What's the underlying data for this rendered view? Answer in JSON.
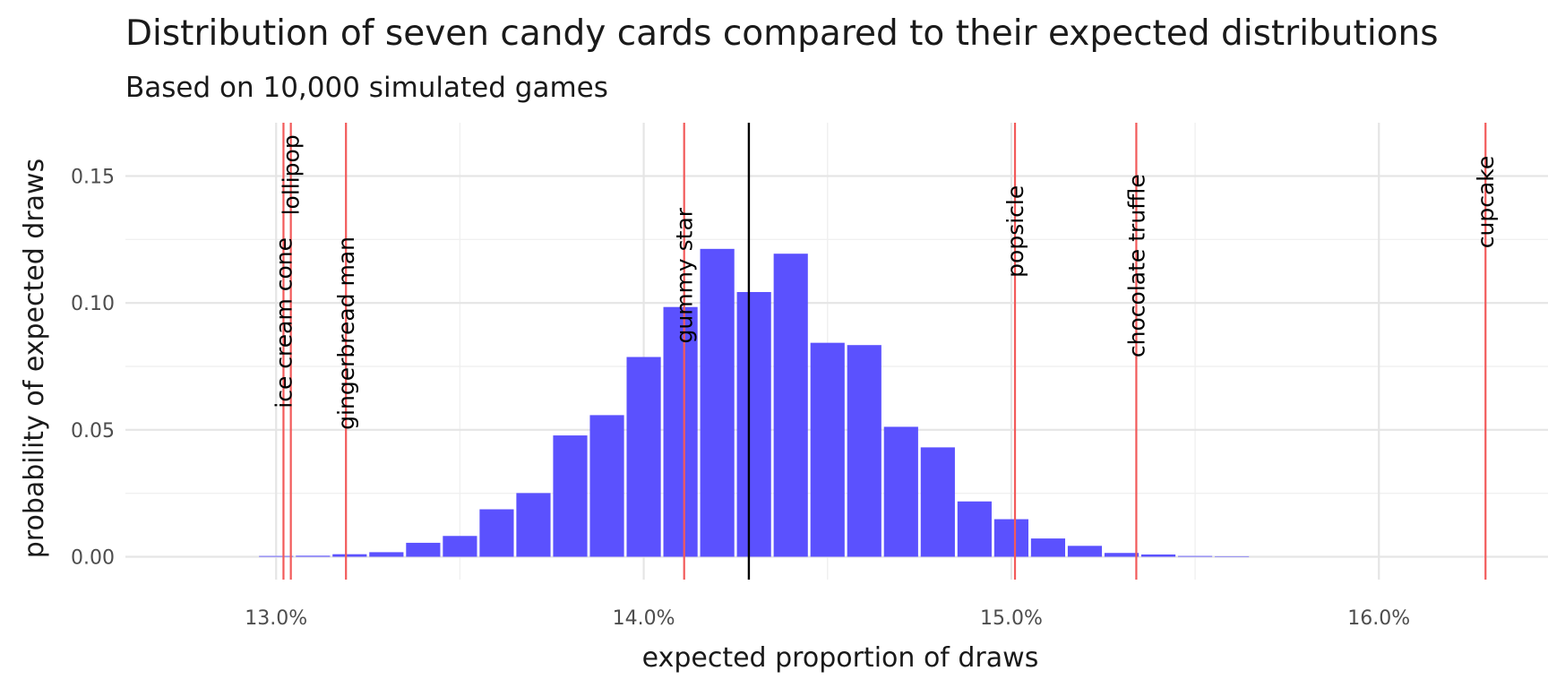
{
  "chart_data": {
    "type": "bar",
    "title": "Distribution of seven candy cards compared to their expected distributions",
    "subtitle": "Based on 10,000 simulated games",
    "xlabel": "expected proportion of draws",
    "ylabel": "probability of expected draws",
    "xlim": [
      0.1259,
      0.1646
    ],
    "ylim": [
      -0.009,
      0.171
    ],
    "x_ticks": [
      {
        "value": 0.13,
        "label": "13.0%"
      },
      {
        "value": 0.14,
        "label": "14.0%"
      },
      {
        "value": 0.15,
        "label": "15.0%"
      },
      {
        "value": 0.16,
        "label": "16.0%"
      }
    ],
    "y_ticks": [
      {
        "value": 0.0,
        "label": "0.00"
      },
      {
        "value": 0.05,
        "label": "0.05"
      },
      {
        "value": 0.1,
        "label": "0.10"
      },
      {
        "value": 0.15,
        "label": "0.15"
      }
    ],
    "bin_width": 0.001,
    "bars": [
      {
        "x": 0.13,
        "y": 0.0003
      },
      {
        "x": 0.131,
        "y": 0.0004
      },
      {
        "x": 0.132,
        "y": 0.001
      },
      {
        "x": 0.133,
        "y": 0.0018
      },
      {
        "x": 0.134,
        "y": 0.0055
      },
      {
        "x": 0.135,
        "y": 0.0082
      },
      {
        "x": 0.136,
        "y": 0.0187
      },
      {
        "x": 0.137,
        "y": 0.0251
      },
      {
        "x": 0.138,
        "y": 0.0478
      },
      {
        "x": 0.139,
        "y": 0.0558
      },
      {
        "x": 0.14,
        "y": 0.0787
      },
      {
        "x": 0.141,
        "y": 0.0984
      },
      {
        "x": 0.142,
        "y": 0.1213
      },
      {
        "x": 0.143,
        "y": 0.1043
      },
      {
        "x": 0.144,
        "y": 0.1194
      },
      {
        "x": 0.145,
        "y": 0.0843
      },
      {
        "x": 0.146,
        "y": 0.0834
      },
      {
        "x": 0.147,
        "y": 0.0512
      },
      {
        "x": 0.148,
        "y": 0.0431
      },
      {
        "x": 0.149,
        "y": 0.0218
      },
      {
        "x": 0.15,
        "y": 0.0148
      },
      {
        "x": 0.151,
        "y": 0.0072
      },
      {
        "x": 0.152,
        "y": 0.0043
      },
      {
        "x": 0.153,
        "y": 0.0015
      },
      {
        "x": 0.154,
        "y": 0.0009
      },
      {
        "x": 0.155,
        "y": 0.0003
      },
      {
        "x": 0.156,
        "y": 0.0002
      }
    ],
    "mean_line": 0.14286,
    "cards": [
      {
        "name": "ice cream cone",
        "x": 0.1302,
        "label_y": 0.0585
      },
      {
        "name": "lollipop",
        "x": 0.1304,
        "label_y": 0.1345
      },
      {
        "name": "gingerbread man",
        "x": 0.1319,
        "label_y": 0.05
      },
      {
        "name": "gummy star",
        "x": 0.1411,
        "label_y": 0.084
      },
      {
        "name": "popsicle",
        "x": 0.1501,
        "label_y": 0.11
      },
      {
        "name": "chocolate truffle",
        "x": 0.1534,
        "label_y": 0.0785
      },
      {
        "name": "cupcake",
        "x": 0.1629,
        "label_y": 0.1215
      }
    ],
    "colors": {
      "bar": "#5b51fe",
      "card_line": "#f25a5a",
      "mean_line": "#000000"
    }
  }
}
